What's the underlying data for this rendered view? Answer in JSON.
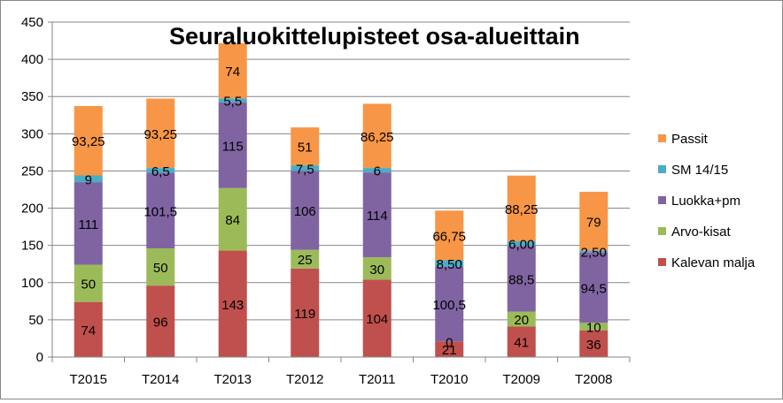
{
  "chart_data": {
    "type": "bar",
    "stacked": true,
    "title": "Seuraluokittelupisteet osa-alueittain",
    "categories": [
      "T2015",
      "T2014",
      "T2013",
      "T2012",
      "T2011",
      "T2010",
      "T2009",
      "T2008"
    ],
    "ylim": [
      0,
      450
    ],
    "yticks": [
      0,
      50,
      100,
      150,
      200,
      250,
      300,
      350,
      400,
      450
    ],
    "grid": true,
    "legend_position": "right",
    "series": [
      {
        "name": "Kalevan malja",
        "color": "#C0504D",
        "values": [
          74,
          96,
          143,
          119,
          104,
          21,
          41,
          36
        ],
        "labels": [
          "74",
          "96",
          "143",
          "119",
          "104",
          "21",
          "41",
          "36"
        ]
      },
      {
        "name": "Arvo-kisat",
        "color": "#9BBB59",
        "values": [
          50,
          50,
          84,
          25,
          30,
          0,
          20,
          10
        ],
        "labels": [
          "50",
          "50",
          "84",
          "25",
          "30",
          "0",
          "20",
          "10"
        ]
      },
      {
        "name": "Luokka+pm",
        "color": "#8064A2",
        "values": [
          111,
          101.5,
          115,
          106,
          114,
          100.5,
          88.5,
          94.5
        ],
        "labels": [
          "111",
          "101,5",
          "115",
          "106",
          "114",
          "100,5",
          "88,5",
          "94,5"
        ]
      },
      {
        "name": "SM 14/15",
        "color": "#4BACC6",
        "values": [
          9,
          6.5,
          5.5,
          7.5,
          6,
          8.5,
          6,
          2.5
        ],
        "labels": [
          "9",
          "6,5",
          "5,5",
          "7,5",
          "6",
          "8,50",
          "6,00",
          "2,50"
        ]
      },
      {
        "name": "Passit",
        "color": "#F79646",
        "values": [
          93.25,
          93.25,
          74,
          51,
          86.25,
          66.75,
          88.25,
          79
        ],
        "labels": [
          "93,25",
          "93,25",
          "74",
          "51",
          "86,25",
          "66,75",
          "88,25",
          "79"
        ]
      }
    ]
  }
}
